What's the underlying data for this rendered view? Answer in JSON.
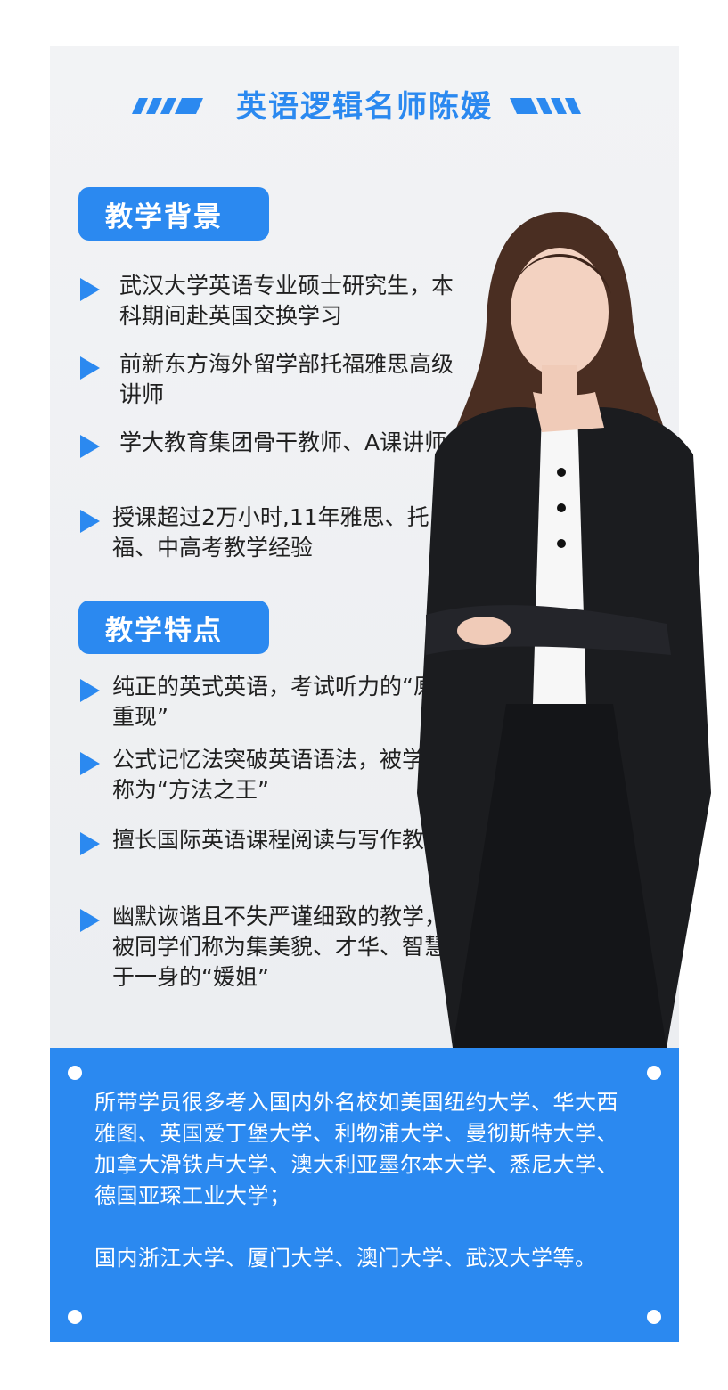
{
  "title": "英语逻辑名师陈媛",
  "colors": {
    "accent": "#2b89f0",
    "panel": "#eceef1",
    "text": "#202020"
  },
  "sections": [
    {
      "heading": "教学背景",
      "items": [
        "武汉大学英语专业硕士研究生，本科期间赴英国交换学习",
        "前新东方海外留学部托福雅思高级讲师",
        "学大教育集团骨干教师、A课讲师",
        "授课超过2万小时,11年雅思、托福、中高考教学经验"
      ]
    },
    {
      "heading": "教学特点",
      "items": [
        "纯正的英式英语，考试听力的“原音重现”",
        "公式记忆法突破英语语法，被学生称为“方法之王”",
        "擅长国际英语课程阅读与写作教学",
        "幽默诙谐且不失严谨细致的教学，被同学们称为集美貌、才华、智慧于一身的“媛姐”"
      ]
    }
  ],
  "footer": {
    "paragraph1": "所带学员很多考入国内外名校如美国纽约大学、华大西雅图、英国爱丁堡大学、利物浦大学、曼彻斯特大学、加拿大滑铁卢大学、澳大利亚墨尔本大学、悉尼大学、德国亚琛工业大学；",
    "paragraph2": "国内浙江大学、厦门大学、澳门大学、武汉大学等。"
  }
}
